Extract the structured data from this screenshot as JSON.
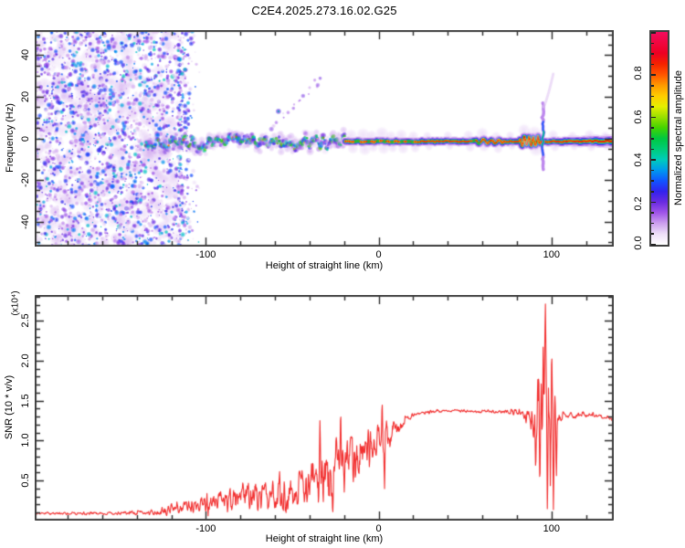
{
  "title": "C2E4.2025.273.16.02.G25",
  "colors": {
    "frame": "#3f3f3f",
    "text": "#000000",
    "snr_line": "#f23030",
    "background": "#ffffff"
  },
  "colormap": {
    "stops": [
      [
        0.0,
        "#ffffff"
      ],
      [
        0.05,
        "#eedff8"
      ],
      [
        0.1,
        "#cda0ee"
      ],
      [
        0.15,
        "#a055e8"
      ],
      [
        0.2,
        "#6a2be2"
      ],
      [
        0.25,
        "#3322ee"
      ],
      [
        0.3,
        "#1155ff"
      ],
      [
        0.35,
        "#0099ee"
      ],
      [
        0.4,
        "#00ccbb"
      ],
      [
        0.45,
        "#00cc77"
      ],
      [
        0.5,
        "#00c840"
      ],
      [
        0.55,
        "#44d400"
      ],
      [
        0.6,
        "#99e000"
      ],
      [
        0.65,
        "#e6ee00"
      ],
      [
        0.7,
        "#ffcc00"
      ],
      [
        0.75,
        "#ff9900"
      ],
      [
        0.8,
        "#ff5500"
      ],
      [
        0.85,
        "#f52200"
      ],
      [
        0.9,
        "#ee0022"
      ],
      [
        1.0,
        "#f20d5e"
      ]
    ]
  },
  "chart_data": [
    {
      "type": "heatmap",
      "title": "",
      "xlabel": "Height of straight line (km)",
      "ylabel": "Frequency (Hz)",
      "xlim": [
        -199,
        136
      ],
      "ylim": [
        -52,
        52
      ],
      "x_major_ticks": [
        -100,
        0,
        100
      ],
      "x_minor_step": 20,
      "y_major_ticks": [
        -40,
        -20,
        0,
        20,
        40
      ],
      "y_minor_step": 5,
      "grid": false,
      "colorbar": {
        "label": "Normalized spectral amplitude",
        "ticks": [
          0.0,
          0.2,
          0.4,
          0.6,
          0.8
        ],
        "range": [
          0,
          1
        ]
      },
      "features": {
        "noise_region": {
          "x": [
            -199,
            -116
          ],
          "fade_to": -103,
          "y": [
            -52,
            52
          ],
          "wash_count": 450,
          "blob_count": 2400,
          "intensity": [
            0.04,
            0.4
          ]
        },
        "wavy_band": {
          "x": [
            -135,
            -19
          ],
          "center_hz": -2,
          "wander_hz": 2.8,
          "core_intensity": [
            0.3,
            0.56
          ],
          "hot_spot_intensity": [
            0.62,
            0.9
          ],
          "hot_spot_prob": 0.15
        },
        "carrier_line": {
          "x": [
            -19.5,
            136
          ],
          "center_hz": -1.5,
          "layers": [
            [
              10,
              0.05,
              0.5
            ],
            [
              7.5,
              0.12,
              0.75
            ],
            [
              5.2,
              0.2,
              0.85
            ],
            [
              3.8,
              0.33,
              0.95
            ],
            [
              2.6,
              0.47,
              1
            ],
            [
              1.7,
              0.63,
              1
            ],
            [
              1.15,
              0.86,
              1
            ]
          ],
          "wiggle_segments": [
            {
              "x": [
                55,
                73
              ],
              "amp_hz": 1.1,
              "period_km": 4.5
            },
            {
              "x": [
                81,
                94
              ],
              "amp_hz": 2.8,
              "period_km": 2.6
            }
          ]
        },
        "bead_regions": [
          [
            -19,
            22,
            1.8
          ],
          [
            55,
            73,
            2.4
          ],
          [
            82,
            94,
            1.7
          ]
        ],
        "fuzz_lobes": [
          [
            -16,
            7
          ],
          [
            -9,
            8
          ],
          [
            -4,
            6
          ],
          [
            2,
            8
          ],
          [
            7,
            6
          ],
          [
            13,
            7
          ],
          [
            20,
            6
          ],
          [
            28,
            5
          ],
          [
            40,
            5
          ],
          [
            52,
            6
          ],
          [
            60,
            7
          ],
          [
            68,
            6
          ],
          [
            76,
            5
          ],
          [
            84,
            7
          ],
          [
            90,
            9
          ],
          [
            101,
            6
          ],
          [
            112,
            5
          ],
          [
            122,
            6
          ],
          [
            131,
            5
          ]
        ],
        "diagonal_streak": {
          "from": [
            -62,
            5
          ],
          "to": [
            -33,
            28
          ],
          "blob_count": 16
        },
        "vertical_streak": {
          "x": 95,
          "hz": [
            -15,
            17
          ]
        },
        "vertical_streak_tail": {
          "from": [
            95.5,
            15
          ],
          "to": [
            101,
            31
          ]
        }
      }
    },
    {
      "type": "line",
      "title": "",
      "xlabel": "Height of straight line (km)",
      "ylabel": "SNR (10 * v/v)",
      "y_scale_note": "(x10⁴)",
      "xlim": [
        -199,
        136
      ],
      "ylim": [
        0,
        2.82
      ],
      "x_major_ticks": [
        -100,
        0,
        100
      ],
      "x_minor_step": 20,
      "y_major_ticks": [
        0.5,
        1.0,
        1.5,
        2.0,
        2.5
      ],
      "y_minor_step": 0.1,
      "grid": false,
      "envelope": [
        [
          -199,
          0.09,
          0.015
        ],
        [
          -150,
          0.09,
          0.02
        ],
        [
          -135,
          0.1,
          0.03
        ],
        [
          -128,
          0.12,
          0.05
        ],
        [
          -118,
          0.15,
          0.08
        ],
        [
          -108,
          0.18,
          0.1
        ],
        [
          -98,
          0.21,
          0.13
        ],
        [
          -88,
          0.24,
          0.15
        ],
        [
          -78,
          0.27,
          0.17
        ],
        [
          -68,
          0.3,
          0.2
        ],
        [
          -58,
          0.33,
          0.23
        ],
        [
          -48,
          0.38,
          0.27
        ],
        [
          -40,
          0.44,
          0.32
        ],
        [
          -34,
          0.5,
          0.38
        ],
        [
          -28,
          0.52,
          0.42
        ],
        [
          -22,
          0.6,
          0.44
        ],
        [
          -16,
          0.72,
          0.36
        ],
        [
          -9,
          0.85,
          0.28
        ],
        [
          -3,
          0.95,
          0.24
        ],
        [
          3,
          1.03,
          0.22
        ],
        [
          9,
          1.15,
          0.12
        ],
        [
          15,
          1.26,
          0.06
        ],
        [
          21,
          1.33,
          0.03
        ],
        [
          35,
          1.37,
          0.018
        ],
        [
          55,
          1.37,
          0.02
        ],
        [
          72,
          1.36,
          0.025
        ],
        [
          82,
          1.35,
          0.04
        ],
        [
          87,
          1.3,
          0.12
        ],
        [
          90,
          1.28,
          0.35
        ],
        [
          93,
          1.45,
          0.7
        ],
        [
          96,
          1.35,
          1.1
        ],
        [
          99,
          1.35,
          0.9
        ],
        [
          101,
          1.2,
          0.45
        ],
        [
          103,
          1.28,
          0.12
        ],
        [
          107,
          1.31,
          0.05
        ],
        [
          118,
          1.33,
          0.035
        ],
        [
          130,
          1.3,
          0.03
        ],
        [
          136,
          1.26,
          0.05
        ]
      ],
      "spikes": [
        [
          -34,
          1.25
        ],
        [
          -24.5,
          1.05
        ],
        [
          -22,
          1.45
        ],
        [
          -6,
          1.18
        ],
        [
          2,
          1.52
        ],
        [
          3.4,
          0.4
        ],
        [
          90.8,
          0.62
        ],
        [
          92,
          1.85
        ],
        [
          93.2,
          0.5
        ],
        [
          94.6,
          0.9
        ],
        [
          96.5,
          2.78
        ],
        [
          97.6,
          0.06
        ],
        [
          98.6,
          1.3
        ],
        [
          100.1,
          2.35
        ],
        [
          101.1,
          0.1
        ],
        [
          102,
          1.6
        ],
        [
          102.8,
          0.5
        ]
      ]
    }
  ]
}
